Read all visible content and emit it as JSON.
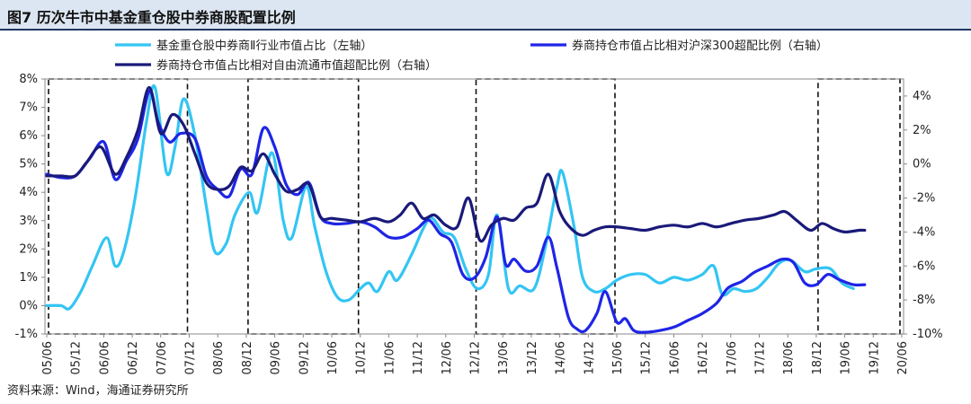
{
  "title": "图7  历次牛市中基金重仓股中券商股配置比例",
  "source": "资料来源：Wind，海通证券研究所",
  "chart_data": {
    "type": "line",
    "categories": [
      "05/06",
      "05/12",
      "06/06",
      "06/12",
      "07/06",
      "07/12",
      "08/06",
      "08/12",
      "09/06",
      "09/12",
      "10/06",
      "10/12",
      "11/06",
      "11/12",
      "12/06",
      "12/12",
      "13/06",
      "13/12",
      "14/06",
      "14/12",
      "15/06",
      "15/12",
      "16/06",
      "16/12",
      "17/06",
      "17/12",
      "18/06",
      "18/12",
      "19/06",
      "19/12",
      "20/06"
    ],
    "left_axis": {
      "ylim": [
        -1,
        8
      ],
      "ticks": [
        "-1%",
        "0%",
        "1%",
        "2%",
        "3%",
        "4%",
        "5%",
        "6%",
        "7%",
        "8%"
      ]
    },
    "right_axis": {
      "ylim": [
        -10,
        5
      ],
      "ticks": [
        "-10%",
        "-8%",
        "-6%",
        "-4%",
        "-2%",
        "0%",
        "2%",
        "4%"
      ]
    },
    "legend": [
      {
        "label": "基金重仓股中券商Ⅱ行业市值占比（左轴）",
        "color": "#33c5f3"
      },
      {
        "label": "券商持仓市值占比相对沪深300超配比例（右轴）",
        "color": "#1f25e6"
      },
      {
        "label": "券商持仓市值占比相对自由流通市值超配比例（右轴）",
        "color": "#1a1a7a"
      }
    ],
    "bull_market_periods": [
      [
        "05/06",
        "07/12"
      ],
      [
        "08/12",
        "10/12"
      ],
      [
        "12/12",
        "15/06"
      ],
      [
        "18/12",
        "20/06"
      ]
    ],
    "series": [
      {
        "name": "基金重仓股中券商Ⅱ行业市值占比（左轴）",
        "axis": "left",
        "color": "#33c5f3",
        "points": [
          [
            0,
            0.0
          ],
          [
            0.5,
            0.0
          ],
          [
            0.8,
            -0.1
          ],
          [
            1.2,
            0.5
          ],
          [
            1.6,
            1.4
          ],
          [
            2.1,
            2.4
          ],
          [
            2.4,
            1.4
          ],
          [
            2.7,
            1.9
          ],
          [
            3.1,
            3.8
          ],
          [
            3.5,
            6.5
          ],
          [
            3.8,
            7.7
          ],
          [
            4.2,
            4.7
          ],
          [
            4.5,
            5.6
          ],
          [
            4.8,
            7.3
          ],
          [
            5.2,
            6.0
          ],
          [
            5.6,
            3.5
          ],
          [
            5.9,
            1.9
          ],
          [
            6.3,
            2.2
          ],
          [
            6.6,
            3.2
          ],
          [
            7.1,
            4.0
          ],
          [
            7.4,
            3.3
          ],
          [
            7.9,
            5.4
          ],
          [
            8.3,
            3.0
          ],
          [
            8.6,
            2.4
          ],
          [
            9.1,
            4.2
          ],
          [
            9.4,
            2.8
          ],
          [
            9.8,
            1.2
          ],
          [
            10.2,
            0.3
          ],
          [
            10.6,
            0.2
          ],
          [
            11.0,
            0.6
          ],
          [
            11.3,
            0.8
          ],
          [
            11.6,
            0.5
          ],
          [
            12.0,
            1.2
          ],
          [
            12.3,
            0.9
          ],
          [
            12.8,
            1.8
          ],
          [
            13.2,
            2.7
          ],
          [
            13.5,
            3.1
          ],
          [
            13.9,
            2.6
          ],
          [
            14.3,
            2.4
          ],
          [
            14.7,
            1.3
          ],
          [
            15.1,
            0.6
          ],
          [
            15.5,
            1.1
          ],
          [
            15.8,
            3.2
          ],
          [
            16.2,
            0.6
          ],
          [
            16.6,
            0.7
          ],
          [
            17.1,
            0.6
          ],
          [
            17.5,
            2.1
          ],
          [
            17.9,
            4.2
          ],
          [
            18.1,
            4.7
          ],
          [
            18.5,
            2.8
          ],
          [
            18.8,
            1.0
          ],
          [
            19.2,
            0.5
          ],
          [
            19.6,
            0.6
          ],
          [
            20.0,
            0.9
          ],
          [
            20.5,
            1.1
          ],
          [
            21.0,
            1.1
          ],
          [
            21.5,
            0.8
          ],
          [
            22.0,
            1.0
          ],
          [
            22.5,
            0.9
          ],
          [
            23.0,
            1.1
          ],
          [
            23.4,
            1.4
          ],
          [
            23.7,
            0.4
          ],
          [
            24.1,
            0.6
          ],
          [
            24.5,
            0.5
          ],
          [
            24.9,
            0.6
          ],
          [
            25.3,
            1.0
          ],
          [
            25.7,
            1.5
          ],
          [
            26.1,
            1.6
          ],
          [
            26.6,
            1.2
          ],
          [
            27.0,
            1.3
          ],
          [
            27.5,
            1.3
          ],
          [
            27.9,
            0.8
          ],
          [
            28.3,
            0.6
          ]
        ]
      },
      {
        "name": "券商持仓市值占比相对沪深300超配比例（右轴）",
        "axis": "right",
        "color": "#1f25e6",
        "points": [
          [
            0,
            -0.6
          ],
          [
            0.5,
            -0.8
          ],
          [
            1.0,
            -0.7
          ],
          [
            1.5,
            0.3
          ],
          [
            2.0,
            1.3
          ],
          [
            2.4,
            -0.9
          ],
          [
            2.8,
            0.2
          ],
          [
            3.2,
            1.5
          ],
          [
            3.6,
            4.3
          ],
          [
            3.9,
            2.5
          ],
          [
            4.3,
            1.3
          ],
          [
            4.7,
            1.8
          ],
          [
            5.2,
            1.5
          ],
          [
            5.6,
            -0.7
          ],
          [
            6.0,
            -1.5
          ],
          [
            6.4,
            -1.9
          ],
          [
            6.8,
            -0.3
          ],
          [
            7.2,
            -0.6
          ],
          [
            7.6,
            2.1
          ],
          [
            8.0,
            1.0
          ],
          [
            8.4,
            -1.2
          ],
          [
            8.8,
            -1.8
          ],
          [
            9.2,
            -1.1
          ],
          [
            9.6,
            -3.1
          ],
          [
            10.0,
            -3.5
          ],
          [
            10.5,
            -3.5
          ],
          [
            11.0,
            -3.4
          ],
          [
            11.5,
            -3.7
          ],
          [
            12.0,
            -4.3
          ],
          [
            12.5,
            -4.3
          ],
          [
            13.0,
            -3.8
          ],
          [
            13.4,
            -3.3
          ],
          [
            13.8,
            -4.1
          ],
          [
            14.2,
            -4.6
          ],
          [
            14.6,
            -6.5
          ],
          [
            15.0,
            -6.7
          ],
          [
            15.4,
            -5.5
          ],
          [
            15.8,
            -3.1
          ],
          [
            16.1,
            -5.9
          ],
          [
            16.4,
            -5.6
          ],
          [
            16.8,
            -6.3
          ],
          [
            17.2,
            -6.0
          ],
          [
            17.6,
            -4.3
          ],
          [
            17.9,
            -6.1
          ],
          [
            18.3,
            -9.0
          ],
          [
            18.6,
            -9.7
          ],
          [
            18.9,
            -9.8
          ],
          [
            19.3,
            -8.8
          ],
          [
            19.6,
            -7.5
          ],
          [
            20.0,
            -9.3
          ],
          [
            20.3,
            -9.1
          ],
          [
            20.6,
            -9.8
          ],
          [
            21.0,
            -9.9
          ],
          [
            21.5,
            -9.8
          ],
          [
            22.0,
            -9.6
          ],
          [
            22.5,
            -9.2
          ],
          [
            23.0,
            -8.8
          ],
          [
            23.5,
            -8.2
          ],
          [
            23.9,
            -7.3
          ],
          [
            24.4,
            -6.9
          ],
          [
            24.8,
            -6.4
          ],
          [
            25.3,
            -6.0
          ],
          [
            25.8,
            -5.6
          ],
          [
            26.2,
            -5.8
          ],
          [
            26.6,
            -7.0
          ],
          [
            27.0,
            -7.1
          ],
          [
            27.4,
            -6.5
          ],
          [
            27.8,
            -6.8
          ],
          [
            28.3,
            -7.1
          ],
          [
            28.7,
            -7.1
          ]
        ]
      },
      {
        "name": "券商持仓市值占比相对自由流通市值超配比例（右轴）",
        "axis": "right",
        "color": "#1a1a7a",
        "points": [
          [
            0,
            -0.7
          ],
          [
            0.5,
            -0.7
          ],
          [
            1.0,
            -0.7
          ],
          [
            1.4,
            0.1
          ],
          [
            1.9,
            1.0
          ],
          [
            2.4,
            -0.6
          ],
          [
            2.8,
            0.4
          ],
          [
            3.2,
            2.0
          ],
          [
            3.6,
            4.5
          ],
          [
            4.0,
            1.8
          ],
          [
            4.4,
            2.9
          ],
          [
            4.8,
            2.3
          ],
          [
            5.2,
            0.6
          ],
          [
            5.6,
            -1.1
          ],
          [
            6.0,
            -1.5
          ],
          [
            6.4,
            -1.3
          ],
          [
            6.8,
            -0.2
          ],
          [
            7.2,
            -0.4
          ],
          [
            7.6,
            0.6
          ],
          [
            8.0,
            -0.6
          ],
          [
            8.4,
            -1.6
          ],
          [
            8.8,
            -1.5
          ],
          [
            9.2,
            -1.2
          ],
          [
            9.6,
            -3.1
          ],
          [
            10.0,
            -3.2
          ],
          [
            10.5,
            -3.3
          ],
          [
            11.0,
            -3.4
          ],
          [
            11.5,
            -3.2
          ],
          [
            12.0,
            -3.4
          ],
          [
            12.4,
            -3.0
          ],
          [
            12.8,
            -2.3
          ],
          [
            13.2,
            -3.2
          ],
          [
            13.6,
            -3.0
          ],
          [
            14.0,
            -3.6
          ],
          [
            14.4,
            -3.7
          ],
          [
            14.8,
            -2.0
          ],
          [
            15.2,
            -4.5
          ],
          [
            15.6,
            -3.6
          ],
          [
            16.0,
            -3.2
          ],
          [
            16.4,
            -3.3
          ],
          [
            16.8,
            -2.6
          ],
          [
            17.2,
            -2.3
          ],
          [
            17.6,
            -0.6
          ],
          [
            18.0,
            -2.8
          ],
          [
            18.4,
            -3.8
          ],
          [
            18.8,
            -4.2
          ],
          [
            19.2,
            -3.9
          ],
          [
            19.6,
            -3.7
          ],
          [
            20.0,
            -3.7
          ],
          [
            20.5,
            -3.8
          ],
          [
            21.0,
            -3.9
          ],
          [
            21.5,
            -3.7
          ],
          [
            22.0,
            -3.6
          ],
          [
            22.5,
            -3.7
          ],
          [
            23.0,
            -3.5
          ],
          [
            23.5,
            -3.7
          ],
          [
            24.0,
            -3.5
          ],
          [
            24.5,
            -3.3
          ],
          [
            25.0,
            -3.2
          ],
          [
            25.5,
            -3.0
          ],
          [
            25.9,
            -2.8
          ],
          [
            26.3,
            -3.3
          ],
          [
            26.8,
            -3.9
          ],
          [
            27.2,
            -3.5
          ],
          [
            27.6,
            -3.8
          ],
          [
            28.0,
            -4.0
          ],
          [
            28.5,
            -3.9
          ],
          [
            28.7,
            -3.9
          ]
        ]
      }
    ]
  }
}
